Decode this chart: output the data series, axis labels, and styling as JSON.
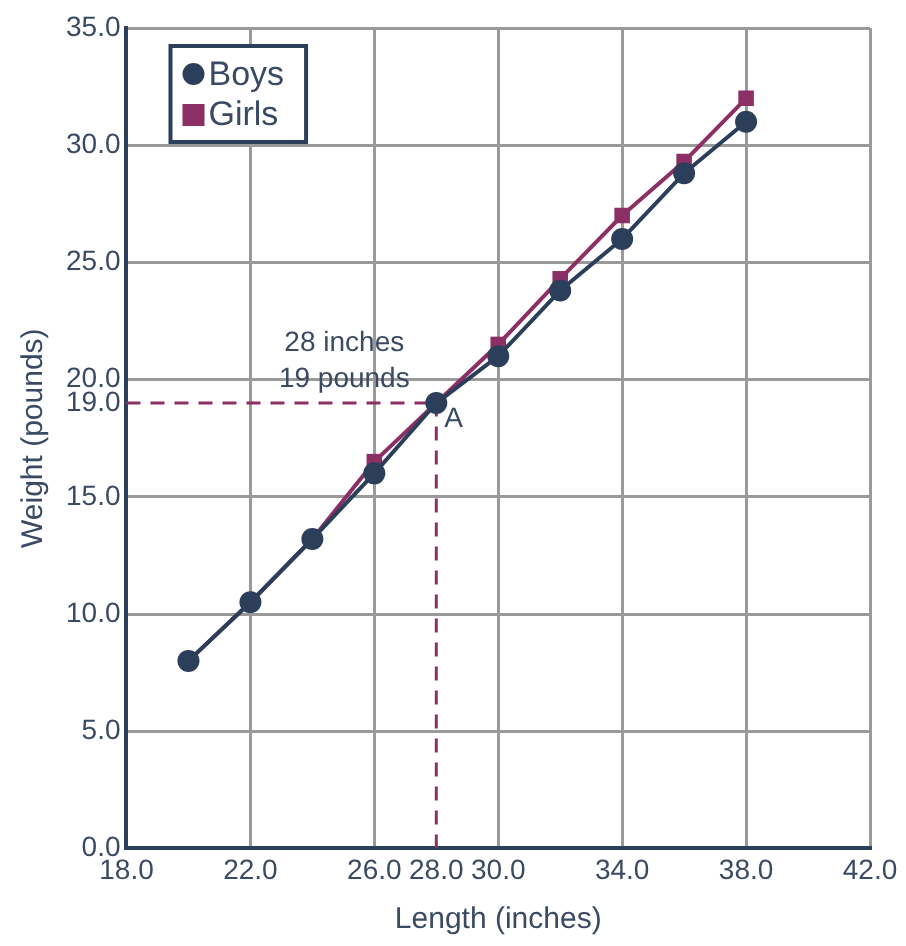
{
  "chart_data": {
    "type": "line",
    "xlabel": "Length (inches)",
    "ylabel": "Weight (pounds)",
    "x": [
      20,
      22,
      24,
      26,
      28,
      30,
      32,
      34,
      36,
      38
    ],
    "series": [
      {
        "name": "Boys",
        "color": "#2b3e5a",
        "marker": "circle",
        "values": [
          8,
          10.5,
          13.2,
          16,
          19,
          21,
          23.8,
          26,
          28.8,
          31
        ]
      },
      {
        "name": "Girls",
        "color": "#8c2f64",
        "marker": "square",
        "values": [
          8,
          10.5,
          13.2,
          16.5,
          19,
          21.5,
          24.3,
          27,
          29.3,
          32
        ]
      }
    ],
    "xlim": [
      18,
      42
    ],
    "xticks": [
      {
        "value": 18,
        "label": "18.0"
      },
      {
        "value": 22,
        "label": "22.0"
      },
      {
        "value": 26,
        "label": "26.0"
      },
      {
        "value": 28,
        "label": "28.0"
      },
      {
        "value": 30,
        "label": "30.0"
      },
      {
        "value": 34,
        "label": "34.0"
      },
      {
        "value": 38,
        "label": "38.0"
      },
      {
        "value": 42,
        "label": "42.0"
      }
    ],
    "ylim": [
      0,
      35
    ],
    "yticks": [
      {
        "value": 0,
        "label": "0.0"
      },
      {
        "value": 5,
        "label": "5.0"
      },
      {
        "value": 10,
        "label": "10.0"
      },
      {
        "value": 15,
        "label": "15.0"
      },
      {
        "value": 19,
        "label": "19.0"
      },
      {
        "value": 20,
        "label": "20.0"
      },
      {
        "value": 25,
        "label": "25.0"
      },
      {
        "value": 30,
        "label": "30.0"
      },
      {
        "value": 35,
        "label": "35.0"
      }
    ],
    "ref_lines": [
      {
        "axis": "x",
        "value": 28,
        "color": "#8c2f64",
        "line_style": "dashed"
      },
      {
        "axis": "y",
        "value": 19,
        "color": "#8c2f64",
        "line_style": "dashed"
      }
    ],
    "annotations": [
      {
        "text": "28 inches\n19 pounds",
        "x": 28,
        "y": 19
      },
      {
        "text": "A",
        "x": 28,
        "y": 19
      }
    ],
    "grid": true,
    "legend": "top left"
  }
}
